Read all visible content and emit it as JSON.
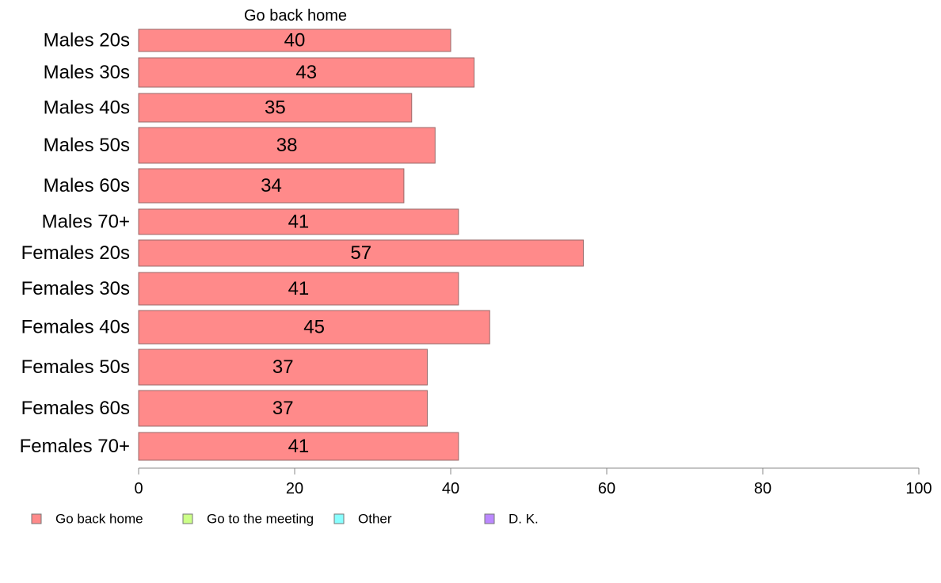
{
  "chart_data": {
    "type": "bar",
    "orientation": "horizontal",
    "title": "Go back home",
    "categories": [
      "Males 20s",
      "Males 30s",
      "Males 40s",
      "Males 50s",
      "Males 60s",
      "Males 70+",
      "Females 20s",
      "Females 30s",
      "Females 40s",
      "Females 50s",
      "Females 60s",
      "Females 70+"
    ],
    "series": [
      {
        "name": "Go back home",
        "color": "#ff8a8a",
        "values": [
          40,
          43,
          35,
          38,
          34,
          41,
          57,
          41,
          45,
          37,
          37,
          41
        ]
      }
    ],
    "value_labels": [
      "40",
      "43",
      "35",
      "38",
      "34",
      "41",
      "57",
      "41",
      "45",
      "37",
      "37",
      "41"
    ],
    "xlim": [
      0,
      100
    ],
    "xticks": [
      0,
      20,
      40,
      60,
      80,
      100
    ],
    "grid": false,
    "legend_position": "bottom",
    "legend": [
      {
        "label": "Go back home",
        "color": "#ff8a8a"
      },
      {
        "label": "Go to the meeting",
        "color": "#ccff88"
      },
      {
        "label": "Other",
        "color": "#88ffff"
      },
      {
        "label": "D. K.",
        "color": "#bb88ff"
      }
    ]
  }
}
